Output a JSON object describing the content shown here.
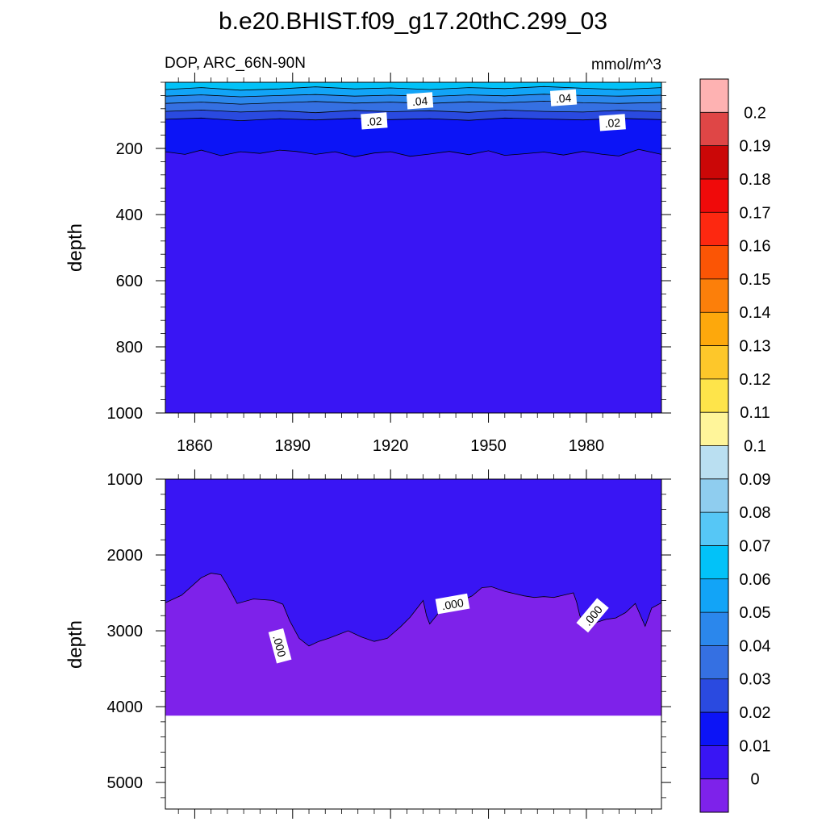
{
  "title": "b.e20.BHIST.f09_g17.20thC.299_03",
  "chart_data": {
    "type": "contour",
    "title": "b.e20.BHIST.f09_g17.20thC.299_03",
    "left_subtitle": "DOP, ARC_66N-90N",
    "right_subtitle": "mmol/m^3",
    "ylabel": "depth",
    "x_ticks": [
      "1860",
      "1890",
      "1920",
      "1950",
      "1980"
    ],
    "x_tick_values": [
      1860,
      1890,
      1920,
      1950,
      1980
    ],
    "xlim": [
      1851,
      2003
    ],
    "panels": [
      {
        "name": "upper",
        "ylim": [
          0,
          1000
        ],
        "y_ticks": [
          "200",
          "400",
          "600",
          "800",
          "1000"
        ],
        "y_tick_values": [
          200,
          400,
          600,
          800,
          1000
        ],
        "contour_labels": [
          {
            "text": ".04",
            "x": 1929,
            "y": 57
          },
          {
            "text": ".04",
            "x": 1973,
            "y": 48
          },
          {
            "text": ".02",
            "x": 1915,
            "y": 118
          },
          {
            "text": ".02",
            "x": 1988,
            "y": 123
          }
        ],
        "contour_boundaries": [
          {
            "level": 0.01,
            "x": [
              1851,
              1857,
              1862,
              1868,
              1874,
              1880,
              1886,
              1891,
              1897,
              1903,
              1909,
              1915,
              1920,
              1926,
              1932,
              1938,
              1944,
              1950,
              1955,
              1961,
              1967,
              1973,
              1979,
              1985,
              1990,
              1996,
              2003
            ],
            "y": [
              210,
              218,
              205,
              222,
              210,
              215,
              205,
              209,
              218,
              210,
              225,
              214,
              210,
              224,
              217,
              209,
              219,
              207,
              221,
              216,
              211,
              220,
              209,
              218,
              223,
              203,
              218
            ]
          },
          {
            "level": 0.02,
            "x": [
              1851,
              1862,
              1874,
              1886,
              1897,
              1909,
              1920,
              1932,
              1944,
              1955,
              1967,
              1979,
              1990,
              2003
            ],
            "y": [
              112,
              108,
              116,
              110,
              114,
              109,
              113,
              110,
              115,
              108,
              111,
              114,
              109,
              113
            ]
          },
          {
            "level": 0.03,
            "x": [
              1851,
              1862,
              1874,
              1886,
              1897,
              1909,
              1920,
              1932,
              1944,
              1955,
              1967,
              1979,
              1990,
              2003
            ],
            "y": [
              88,
              84,
              90,
              86,
              92,
              85,
              89,
              86,
              91,
              84,
              88,
              90,
              85,
              89
            ]
          },
          {
            "level": 0.04,
            "x": [
              1851,
              1862,
              1874,
              1886,
              1897,
              1909,
              1920,
              1932,
              1944,
              1955,
              1967,
              1979,
              1990,
              2003
            ],
            "y": [
              64,
              60,
              66,
              62,
              58,
              63,
              60,
              64,
              59,
              62,
              57,
              62,
              64,
              61
            ]
          },
          {
            "level": 0.05,
            "x": [
              1851,
              1862,
              1874,
              1886,
              1897,
              1909,
              1920,
              1932,
              1944,
              1955,
              1967,
              1979,
              1990,
              2003
            ],
            "y": [
              42,
              38,
              44,
              40,
              37,
              42,
              39,
              43,
              38,
              41,
              36,
              40,
              42,
              39
            ]
          },
          {
            "level": 0.06,
            "x": [
              1851,
              1862,
              1874,
              1886,
              1897,
              1909,
              1920,
              1932,
              1944,
              1955,
              1967,
              1979,
              1990,
              2003
            ],
            "y": [
              22,
              16,
              24,
              20,
              14,
              20,
              17,
              22,
              16,
              19,
              13,
              18,
              22,
              16
            ]
          }
        ]
      },
      {
        "name": "lower",
        "ylim": [
          1000,
          5350
        ],
        "y_ticks": [
          "1000",
          "2000",
          "3000",
          "4000",
          "5000"
        ],
        "y_tick_values": [
          1000,
          2000,
          3000,
          4000,
          5000
        ],
        "data_bottom": 4120,
        "contour_labels": [
          {
            "text": ".000",
            "x": 1886,
            "y": 3200,
            "rotation": 75
          },
          {
            "text": ".000",
            "x": 1939,
            "y": 2650,
            "rotation": -10
          },
          {
            "text": ".000",
            "x": 1982,
            "y": 2800,
            "rotation": -50
          }
        ],
        "contour_boundaries": [
          {
            "level": 0.0,
            "x": [
              1851,
              1856,
              1862,
              1865,
              1868,
              1870,
              1873,
              1878,
              1884,
              1887,
              1889,
              1892,
              1895,
              1898,
              1901,
              1904,
              1907,
              1911,
              1915,
              1919,
              1923,
              1926,
              1930,
              1931,
              1932,
              1935,
              1939,
              1942,
              1945,
              1948,
              1951,
              1955,
              1958,
              1961,
              1964,
              1967,
              1970,
              1973,
              1976,
              1977,
              1978,
              1980,
              1983,
              1986,
              1989,
              1992,
              1995,
              1998,
              2000,
              2003
            ],
            "y": [
              2630,
              2530,
              2300,
              2240,
              2260,
              2400,
              2640,
              2580,
              2600,
              2650,
              2860,
              3100,
              3200,
              3140,
              3100,
              3050,
              3000,
              3080,
              3140,
              3100,
              2950,
              2820,
              2600,
              2800,
              2910,
              2750,
              2620,
              2600,
              2540,
              2430,
              2420,
              2480,
              2510,
              2540,
              2560,
              2550,
              2560,
              2530,
              2500,
              2620,
              2800,
              2960,
              2890,
              2850,
              2830,
              2760,
              2640,
              2940,
              2700,
              2630
            ]
          }
        ]
      }
    ],
    "colorbar": {
      "labels": [
        "0",
        "0.01",
        "0.02",
        "0.03",
        "0.04",
        "0.05",
        "0.06",
        "0.07",
        "0.08",
        "0.09",
        "0.1",
        "0.11",
        "0.12",
        "0.13",
        "0.14",
        "0.15",
        "0.16",
        "0.17",
        "0.18",
        "0.19",
        "0.2"
      ],
      "colors": [
        "#7e22ea",
        "#3915f4",
        "#0c14f6",
        "#2a4ae0",
        "#3570e2",
        "#2b87ec",
        "#12a4f7",
        "#02c2f8",
        "#56c7f6",
        "#8fcdef",
        "#badff1",
        "#fff59a",
        "#fee44a",
        "#fdc72a",
        "#fda80c",
        "#fc7f0a",
        "#fb5505",
        "#fd2810",
        "#f00a0a",
        "#cb0707",
        "#df4646",
        "#feb2b2"
      ]
    }
  }
}
